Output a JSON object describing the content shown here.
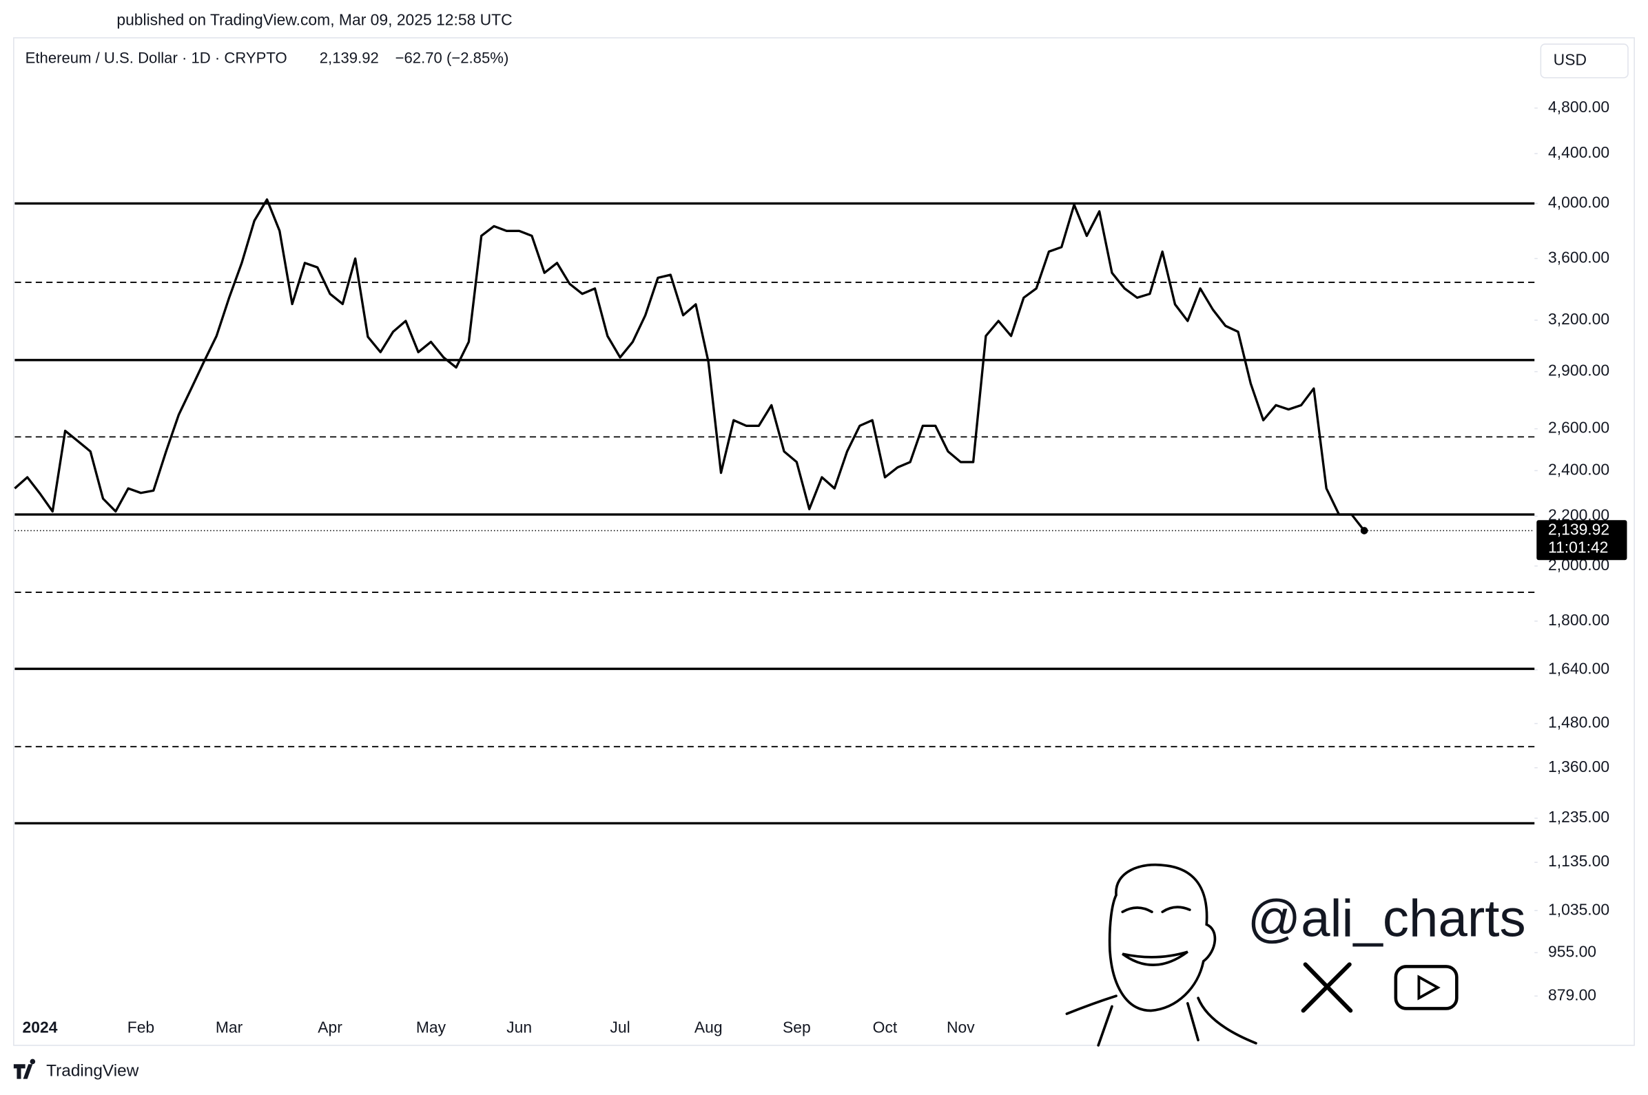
{
  "header": {
    "published": "published on TradingView.com, Mar 09, 2025 12:58 UTC"
  },
  "footer": {
    "brand": "TradingView"
  },
  "watermark": {
    "handle": "@ali_charts"
  },
  "chart_data": {
    "type": "line",
    "title": "Ethereum / U.S. Dollar · 1D · CRYPTO",
    "price": "2,139.92",
    "change": "−62.70 (−2.85%)",
    "currency": "USD",
    "last_value_label": "2,139.92",
    "countdown": "11:01:42",
    "log_scale": true,
    "grid": false,
    "color": "#000000",
    "categories": [
      null,
      null,
      "2024",
      null,
      null,
      null,
      null,
      null,
      null,
      null,
      "Feb",
      null,
      null,
      null,
      null,
      null,
      null,
      "Mar",
      null,
      null,
      null,
      null,
      null,
      null,
      null,
      "Apr",
      null,
      null,
      null,
      null,
      null,
      null,
      null,
      "May",
      null,
      null,
      null,
      null,
      null,
      null,
      "Jun",
      null,
      null,
      null,
      null,
      null,
      null,
      null,
      "Jul",
      null,
      null,
      null,
      null,
      null,
      null,
      "Aug",
      null,
      null,
      null,
      null,
      null,
      null,
      "Sep",
      null,
      null,
      null,
      null,
      null,
      null,
      "Oct",
      null,
      null,
      null,
      null,
      null,
      "Nov",
      null,
      null,
      null,
      null,
      null,
      null,
      null,
      null,
      null,
      null,
      null,
      null,
      null,
      null,
      null,
      null,
      null,
      null,
      null,
      null,
      null,
      null,
      null,
      null,
      null,
      null,
      null,
      null,
      null,
      null,
      null,
      null
    ],
    "values": [
      2320,
      2370,
      2297,
      2220,
      2590,
      2540,
      2490,
      2275,
      2220,
      2320,
      2300,
      2310,
      2490,
      2670,
      2808,
      2955,
      3105,
      3340,
      3570,
      3870,
      4030,
      3795,
      3300,
      3570,
      3540,
      3365,
      3300,
      3600,
      3100,
      3010,
      3130,
      3195,
      3010,
      3070,
      2980,
      2923,
      3070,
      3760,
      3830,
      3795,
      3795,
      3760,
      3503,
      3570,
      3430,
      3365,
      3400,
      3105,
      2980,
      3070,
      3230,
      3470,
      3490,
      3230,
      3298,
      2955,
      2390,
      2643,
      2615,
      2615,
      2720,
      2490,
      2440,
      2230,
      2370,
      2320,
      2490,
      2615,
      2643,
      2370,
      2415,
      2440,
      2615,
      2615,
      2490,
      2440,
      2440,
      3105,
      3195,
      3105,
      3340,
      3400,
      3648,
      3680,
      3990,
      3760,
      3940,
      3503,
      3400,
      3340,
      3365,
      3648,
      3298,
      3195,
      3400,
      3265,
      3165,
      3130,
      2835,
      2643,
      2720,
      2698,
      2720,
      2808,
      2320,
      2207,
      2207,
      2139.92
    ],
    "levels": [
      4000,
      2965,
      2207,
      1643,
      1223
    ],
    "dashed_levels": [
      3440,
      2560,
      1902,
      1416
    ],
    "ylim": [
      800,
      5490
    ],
    "yticks": [
      {
        "value": 4800,
        "label": "4,800.00"
      },
      {
        "value": 4400,
        "label": "4,400.00"
      },
      {
        "value": 4000,
        "label": "4,000.00"
      },
      {
        "value": 3600,
        "label": "3,600.00"
      },
      {
        "value": 3200,
        "label": "3,200.00"
      },
      {
        "value": 2900,
        "label": "2,900.00"
      },
      {
        "value": 2600,
        "label": "2,600.00"
      },
      {
        "value": 2400,
        "label": "2,400.00"
      },
      {
        "value": 2200,
        "label": "2,200.00"
      },
      {
        "value": 2000,
        "label": "2,000.00"
      },
      {
        "value": 1800,
        "label": "1,800.00"
      },
      {
        "value": 1640,
        "label": "1,640.00"
      },
      {
        "value": 1480,
        "label": "1,480.00"
      },
      {
        "value": 1360,
        "label": "1,360.00"
      },
      {
        "value": 1235,
        "label": "1,235.00"
      },
      {
        "value": 1135,
        "label": "1,135.00"
      },
      {
        "value": 1035,
        "label": "1,035.00"
      },
      {
        "value": 955,
        "label": "955.00"
      },
      {
        "value": 879,
        "label": "879.00"
      }
    ]
  }
}
